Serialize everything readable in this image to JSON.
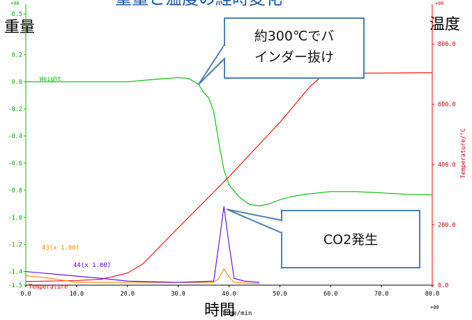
{
  "chart_data": {
    "type": "line",
    "title": "重量と温度の経時変化",
    "left_axis_title": "重量",
    "right_axis_title": "温度",
    "x_axis_title": "時間",
    "xlabel": "Time/min",
    "ylabel_right": "Temperature/°C",
    "left_axis_scale_label": "+00",
    "right_axis_scale_label": "+00",
    "x_axis_scale_label": "+00",
    "xlim": [
      0,
      80
    ],
    "ylim_left": [
      -1.5,
      0.5
    ],
    "ylim_right": [
      0,
      900
    ],
    "x_ticks": [
      "0.0",
      "10.0",
      "20.0",
      "30.0",
      "40.0",
      "50.0",
      "60.0",
      "70.0",
      "80.0"
    ],
    "y_ticks_left": [
      "0.5",
      "0.2",
      "0.0",
      "-0.2",
      "-0.4",
      "-0.6",
      "-0.8",
      "-1.0",
      "-1.2",
      "-1.4",
      "-1.5"
    ],
    "y_ticks_right": [
      "0.0",
      "200.0",
      "400.0",
      "600.0",
      "800.0"
    ],
    "series": [
      {
        "name": "Weight",
        "axis": "left",
        "color": "#00bb00",
        "points": [
          [
            0,
            0.0
          ],
          [
            20,
            0.0
          ],
          [
            26,
            0.02
          ],
          [
            30,
            0.03
          ],
          [
            32,
            0.025
          ],
          [
            34,
            -0.02
          ],
          [
            35,
            -0.08
          ],
          [
            36,
            -0.12
          ],
          [
            37,
            -0.22
          ],
          [
            38,
            -0.45
          ],
          [
            39,
            -0.65
          ],
          [
            40,
            -0.76
          ],
          [
            42,
            -0.85
          ],
          [
            44,
            -0.905
          ],
          [
            46,
            -0.915
          ],
          [
            48,
            -0.9
          ],
          [
            50,
            -0.87
          ],
          [
            52,
            -0.85
          ],
          [
            55,
            -0.83
          ],
          [
            60,
            -0.81
          ],
          [
            65,
            -0.81
          ],
          [
            70,
            -0.82
          ],
          [
            75,
            -0.83
          ],
          [
            80,
            -0.835
          ]
        ]
      },
      {
        "name": "Temperature",
        "axis": "right",
        "color": "#ff0000",
        "points": [
          [
            0,
            12
          ],
          [
            10,
            15
          ],
          [
            15,
            20
          ],
          [
            20,
            40
          ],
          [
            23,
            70
          ],
          [
            30,
            190
          ],
          [
            40,
            360
          ],
          [
            50,
            540
          ],
          [
            56,
            660
          ],
          [
            58,
            690
          ],
          [
            60,
            700
          ],
          [
            65,
            703
          ],
          [
            80,
            705
          ]
        ]
      },
      {
        "name": "43(x 1.00)",
        "axis": "left",
        "color": "#ff8800",
        "points": [
          [
            0,
            -1.43
          ],
          [
            5,
            -1.45
          ],
          [
            10,
            -1.48
          ],
          [
            20,
            -1.48
          ],
          [
            37,
            -1.48
          ],
          [
            38,
            -1.45
          ],
          [
            39,
            -1.38
          ],
          [
            40,
            -1.44
          ],
          [
            41,
            -1.48
          ],
          [
            46,
            -1.49
          ]
        ]
      },
      {
        "name": "44(x 1.00)",
        "axis": "left",
        "color": "#5500ee",
        "points": [
          [
            0,
            -1.4
          ],
          [
            3,
            -1.41
          ],
          [
            6,
            -1.42
          ],
          [
            9,
            -1.43
          ],
          [
            12,
            -1.44
          ],
          [
            15,
            -1.45
          ],
          [
            20,
            -1.47
          ],
          [
            30,
            -1.48
          ],
          [
            37,
            -1.47
          ],
          [
            38,
            -1.2
          ],
          [
            39,
            -0.92
          ],
          [
            40,
            -1.2
          ],
          [
            41,
            -1.45
          ],
          [
            43,
            -1.47
          ],
          [
            46,
            -1.48
          ]
        ]
      }
    ],
    "annotations": {
      "binder": {
        "line1": "約300℃でバ",
        "line2": "インダー抜け",
        "x": 34,
        "y": -0.02
      },
      "co2": {
        "text": "CO2発生",
        "x": 39,
        "y": -0.92
      }
    },
    "grid": false,
    "legend": "inline-labels"
  }
}
